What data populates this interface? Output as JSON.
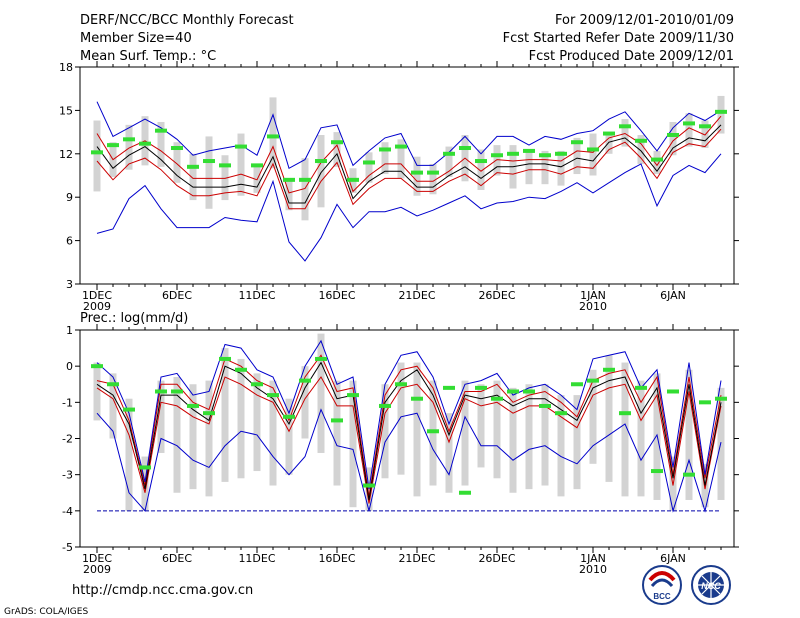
{
  "header": {
    "title": "DERF/NCC/BCC Monthly Forecast",
    "member_size": "Member Size=40",
    "period": "For 2009/12/01-2010/01/09",
    "started": "Fcst Started Refer Date 2009/11/30",
    "produced": "Fcst Produced Date 2009/12/01"
  },
  "footer": {
    "url": "http://cmdp.ncc.cma.gov.cn",
    "grads": "GrADS: COLA/IGES",
    "bcc_logo_text": "BCC",
    "ncc_logo_text": "NCC"
  },
  "colors": {
    "max_min": "#0000cc",
    "band": "#cc0000",
    "mean": "#000000",
    "box": "#d3d3d3",
    "marker": "#33dd33",
    "floor": "#0000aa"
  },
  "chart_data": [
    {
      "type": "line",
      "title": "Mean Surf. Temp.: °C",
      "ylim": [
        3,
        18
      ],
      "yticks": [
        3,
        6,
        9,
        12,
        15,
        18
      ],
      "xtick_labels": [
        {
          "day": 1,
          "label": "1DEC",
          "sub": "2009"
        },
        {
          "day": 6,
          "label": "6DEC",
          "sub": ""
        },
        {
          "day": 11,
          "label": "11DEC",
          "sub": ""
        },
        {
          "day": 16,
          "label": "16DEC",
          "sub": ""
        },
        {
          "day": 21,
          "label": "21DEC",
          "sub": ""
        },
        {
          "day": 26,
          "label": "26DEC",
          "sub": ""
        },
        {
          "day": 32,
          "label": "1JAN",
          "sub": "2010"
        },
        {
          "day": 37,
          "label": "6JAN",
          "sub": ""
        }
      ],
      "x": [
        1,
        2,
        3,
        4,
        5,
        6,
        7,
        8,
        9,
        10,
        11,
        12,
        13,
        14,
        15,
        16,
        17,
        18,
        19,
        20,
        21,
        22,
        23,
        24,
        25,
        26,
        27,
        28,
        29,
        30,
        31,
        32,
        33,
        34,
        35,
        36,
        37,
        38,
        39,
        40
      ],
      "series": [
        {
          "name": "max",
          "role": "max",
          "values": [
            15.6,
            13.2,
            13.8,
            14.4,
            13.8,
            13.0,
            11.9,
            12.2,
            12.4,
            12.6,
            11.9,
            14.7,
            11.0,
            11.6,
            13.8,
            14.0,
            11.2,
            12.2,
            13.1,
            13.4,
            11.2,
            11.2,
            12.1,
            13.2,
            12.0,
            13.2,
            13.2,
            12.6,
            13.2,
            13.0,
            13.4,
            13.6,
            14.4,
            14.9,
            13.6,
            12.2,
            13.8,
            14.8,
            14.3,
            15.0
          ]
        },
        {
          "name": "upper",
          "role": "band",
          "values": [
            13.4,
            11.6,
            12.4,
            12.9,
            12.2,
            11.3,
            10.3,
            10.3,
            10.3,
            10.6,
            10.2,
            12.5,
            9.3,
            9.6,
            11.4,
            12.6,
            9.4,
            10.5,
            11.3,
            11.3,
            10.1,
            10.1,
            10.8,
            11.7,
            10.8,
            11.6,
            11.5,
            11.6,
            11.6,
            11.5,
            12.2,
            12.1,
            13.1,
            13.4,
            12.7,
            11.2,
            12.9,
            13.8,
            13.3,
            14.6
          ]
        },
        {
          "name": "mean",
          "role": "mean",
          "values": [
            12.5,
            11.0,
            11.9,
            12.5,
            11.6,
            10.5,
            9.7,
            9.7,
            9.7,
            9.9,
            9.7,
            11.8,
            8.6,
            8.6,
            10.7,
            12.0,
            8.9,
            10.1,
            10.8,
            10.8,
            9.7,
            9.7,
            10.5,
            11.1,
            10.3,
            11.1,
            11.1,
            11.3,
            11.3,
            11.1,
            11.7,
            11.5,
            12.8,
            13.1,
            12.2,
            10.8,
            12.4,
            13.1,
            12.9,
            14.0
          ]
        },
        {
          "name": "lower",
          "role": "band",
          "values": [
            11.5,
            10.2,
            11.3,
            11.7,
            10.9,
            9.8,
            9.1,
            9.1,
            9.3,
            9.4,
            9.1,
            11.3,
            8.2,
            8.2,
            10.1,
            11.4,
            8.5,
            9.6,
            10.3,
            10.3,
            9.4,
            9.4,
            10.1,
            10.6,
            9.8,
            10.7,
            10.6,
            10.9,
            10.9,
            10.6,
            11.1,
            11.0,
            12.3,
            12.8,
            11.7,
            10.3,
            12.1,
            12.7,
            12.5,
            13.7
          ]
        },
        {
          "name": "min",
          "role": "min",
          "values": [
            6.5,
            6.8,
            8.9,
            9.8,
            8.2,
            6.9,
            6.9,
            6.9,
            7.6,
            7.4,
            7.3,
            10.1,
            5.9,
            4.6,
            6.2,
            8.5,
            6.9,
            8.0,
            8.0,
            8.3,
            7.7,
            8.1,
            8.6,
            9.1,
            8.2,
            8.6,
            8.7,
            9.0,
            8.9,
            9.4,
            10.0,
            9.3,
            10.0,
            10.7,
            11.3,
            8.4,
            10.5,
            11.2,
            10.7,
            12.0
          ]
        },
        {
          "name": "obs",
          "role": "marker",
          "values": [
            12.1,
            12.6,
            13.0,
            12.7,
            13.6,
            12.4,
            11.1,
            11.5,
            11.2,
            12.5,
            11.2,
            13.2,
            10.2,
            10.2,
            11.5,
            12.8,
            10.2,
            11.4,
            12.3,
            12.5,
            10.7,
            10.7,
            12.0,
            12.4,
            11.5,
            11.9,
            12.0,
            12.2,
            11.9,
            12.0,
            12.8,
            12.3,
            13.4,
            13.9,
            12.9,
            11.6,
            13.3,
            14.1,
            13.9,
            14.9
          ]
        },
        {
          "name": "box_top",
          "role": "box_top",
          "values": [
            14.3,
            12.8,
            14.0,
            14.6,
            14.2,
            12.8,
            12.0,
            13.2,
            11.9,
            13.4,
            11.2,
            15.9,
            10.3,
            11.7,
            13.3,
            13.5,
            11.0,
            12.1,
            12.8,
            13.0,
            11.8,
            11.3,
            12.5,
            13.3,
            12.3,
            12.6,
            12.6,
            12.3,
            12.2,
            12.2,
            13.1,
            13.4,
            13.4,
            14.4,
            13.3,
            12.2,
            14.2,
            14.8,
            14.3,
            16.0
          ]
        },
        {
          "name": "box_bottom",
          "role": "box_bottom",
          "values": [
            9.4,
            10.4,
            10.9,
            11.2,
            11.1,
            10.0,
            8.8,
            8.2,
            8.8,
            9.1,
            9.3,
            11.0,
            8.1,
            7.4,
            8.3,
            11.1,
            9.3,
            10.0,
            10.6,
            10.3,
            9.1,
            9.2,
            10.4,
            10.1,
            9.5,
            10.5,
            9.6,
            9.9,
            9.9,
            9.8,
            10.6,
            10.5,
            12.0,
            12.5,
            11.3,
            10.6,
            11.9,
            12.5,
            12.4,
            13.4
          ]
        }
      ]
    },
    {
      "type": "line",
      "title": "Prec.: log(mm/d)",
      "ylim": [
        -5,
        1
      ],
      "yticks": [
        -5,
        -4,
        -3,
        -2,
        -1,
        0,
        1
      ],
      "xtick_labels": [
        {
          "day": 1,
          "label": "1DEC",
          "sub": "2009"
        },
        {
          "day": 6,
          "label": "6DEC",
          "sub": ""
        },
        {
          "day": 11,
          "label": "11DEC",
          "sub": ""
        },
        {
          "day": 16,
          "label": "16DEC",
          "sub": ""
        },
        {
          "day": 21,
          "label": "21DEC",
          "sub": ""
        },
        {
          "day": 26,
          "label": "26DEC",
          "sub": ""
        },
        {
          "day": 32,
          "label": "1JAN",
          "sub": "2010"
        },
        {
          "day": 37,
          "label": "6JAN",
          "sub": ""
        }
      ],
      "floor_value": -4,
      "x": [
        1,
        2,
        3,
        4,
        5,
        6,
        7,
        8,
        9,
        10,
        11,
        12,
        13,
        14,
        15,
        16,
        17,
        18,
        19,
        20,
        21,
        22,
        23,
        24,
        25,
        26,
        27,
        28,
        29,
        30,
        31,
        32,
        33,
        34,
        35,
        36,
        37,
        38,
        39,
        40
      ],
      "series": [
        {
          "name": "max",
          "role": "max",
          "values": [
            0.1,
            -0.3,
            -1.3,
            -3.2,
            -0.3,
            -0.2,
            -0.8,
            -0.7,
            0.6,
            0.5,
            -0.1,
            -0.3,
            -1.3,
            0.0,
            0.7,
            -0.5,
            -0.3,
            -3.4,
            -0.5,
            0.3,
            0.4,
            -0.3,
            -1.6,
            -0.5,
            -0.4,
            -0.2,
            -0.8,
            -0.6,
            -0.5,
            -0.8,
            -1.2,
            0.2,
            0.3,
            0.4,
            -0.6,
            -0.1,
            -2.8,
            0.1,
            -3.0,
            -0.4
          ]
        },
        {
          "name": "upper",
          "role": "band",
          "values": [
            -0.4,
            -0.5,
            -1.5,
            -3.3,
            -0.5,
            -0.5,
            -1.0,
            -1.2,
            0.2,
            0.0,
            -0.4,
            -0.6,
            -1.5,
            -0.3,
            0.3,
            -0.7,
            -0.6,
            -3.6,
            -0.8,
            -0.1,
            0.0,
            -0.6,
            -1.8,
            -0.7,
            -0.7,
            -0.5,
            -1.0,
            -0.8,
            -0.7,
            -1.0,
            -1.4,
            -0.4,
            -0.2,
            -0.1,
            -1.0,
            -0.3,
            -3.0,
            -0.3,
            -3.1,
            -0.8
          ]
        },
        {
          "name": "mean",
          "role": "mean",
          "values": [
            -0.5,
            -0.8,
            -1.6,
            -3.4,
            -0.8,
            -0.8,
            -1.2,
            -1.5,
            0.0,
            -0.2,
            -0.6,
            -0.9,
            -1.6,
            -0.6,
            0.1,
            -0.9,
            -0.8,
            -3.7,
            -1.0,
            -0.4,
            -0.1,
            -0.8,
            -1.9,
            -0.8,
            -0.9,
            -0.8,
            -1.1,
            -0.9,
            -0.9,
            -1.2,
            -1.5,
            -0.6,
            -0.4,
            -0.3,
            -1.3,
            -0.6,
            -3.1,
            -0.5,
            -3.3,
            -1.0
          ]
        },
        {
          "name": "lower",
          "role": "band",
          "values": [
            -0.6,
            -0.9,
            -1.9,
            -3.5,
            -1.0,
            -1.1,
            -1.4,
            -1.6,
            -0.3,
            -0.5,
            -0.8,
            -1.0,
            -1.8,
            -0.9,
            -0.3,
            -1.1,
            -1.1,
            -3.8,
            -1.3,
            -0.6,
            -0.5,
            -1.0,
            -2.1,
            -0.9,
            -1.1,
            -1.0,
            -1.3,
            -1.1,
            -1.1,
            -1.4,
            -1.7,
            -0.8,
            -0.6,
            -0.5,
            -1.5,
            -0.8,
            -3.3,
            -0.7,
            -3.4,
            -1.1
          ]
        },
        {
          "name": "min",
          "role": "min",
          "values": [
            -1.3,
            -1.8,
            -3.5,
            -4.0,
            -2.0,
            -2.2,
            -2.6,
            -2.8,
            -2.2,
            -1.8,
            -1.9,
            -2.5,
            -3.0,
            -2.5,
            -1.2,
            -2.2,
            -2.3,
            -4.0,
            -2.1,
            -1.4,
            -1.3,
            -2.3,
            -3.0,
            -1.4,
            -2.2,
            -2.2,
            -2.6,
            -2.3,
            -2.2,
            -2.5,
            -2.7,
            -2.2,
            -1.9,
            -1.6,
            -2.6,
            -1.9,
            -4.0,
            -2.6,
            -4.0,
            -2.1
          ]
        },
        {
          "name": "obs",
          "role": "marker",
          "values": [
            0.0,
            -0.5,
            -1.2,
            -2.8,
            -0.7,
            -0.7,
            -1.1,
            -1.3,
            0.2,
            -0.1,
            -0.5,
            -0.8,
            -1.4,
            -0.4,
            0.2,
            -1.5,
            -0.8,
            -3.3,
            -1.1,
            -0.5,
            -0.9,
            -1.8,
            -0.6,
            -3.5,
            -0.6,
            -0.9,
            -0.7,
            -0.7,
            -1.1,
            -1.3,
            -0.5,
            -0.4,
            -0.1,
            -1.3,
            -0.6,
            -2.9,
            -0.7,
            -3.0,
            -1.0,
            -0.9
          ]
        },
        {
          "name": "box_top",
          "role": "box_top",
          "values": [
            0.1,
            -0.2,
            -0.9,
            -2.5,
            -0.4,
            -0.3,
            -0.5,
            -0.4,
            0.5,
            0.2,
            -0.2,
            -0.4,
            -0.9,
            0.0,
            0.9,
            -0.4,
            -0.4,
            -2.8,
            -0.5,
            0.1,
            0.1,
            -0.4,
            -1.3,
            -0.4,
            -0.5,
            -0.4,
            -0.6,
            -0.5,
            -0.5,
            -0.8,
            -0.8,
            -0.1,
            0.3,
            0.1,
            -0.4,
            -0.2,
            -2.5,
            -0.1,
            -2.7,
            -0.6
          ]
        },
        {
          "name": "box_bottom",
          "role": "box_bottom",
          "values": [
            -1.5,
            -2.0,
            -4.0,
            -4.0,
            -2.4,
            -3.5,
            -3.4,
            -3.6,
            -3.2,
            -3.1,
            -2.9,
            -3.3,
            -3.0,
            -2.0,
            -2.4,
            -3.3,
            -3.9,
            -4.0,
            -3.1,
            -3.0,
            -3.6,
            -3.3,
            -3.5,
            -3.3,
            -2.8,
            -3.1,
            -3.5,
            -3.4,
            -3.3,
            -3.6,
            -3.4,
            -2.7,
            -3.2,
            -3.6,
            -3.6,
            -3.7,
            -4.0,
            -3.7,
            -3.9,
            -3.7
          ]
        }
      ]
    }
  ]
}
